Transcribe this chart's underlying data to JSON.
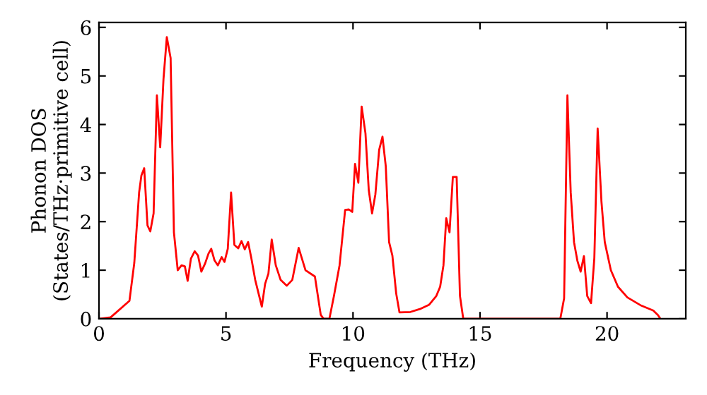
{
  "chart_data": {
    "type": "line",
    "xlabel": "Frequency (THz)",
    "ylabel": "Phonon DOS\n(States/THz·primitive cell)",
    "xlim": [
      0,
      23.1
    ],
    "ylim": [
      0,
      6.1
    ],
    "xticks": [
      0,
      5,
      10,
      15,
      20
    ],
    "yticks": [
      0,
      1,
      2,
      3,
      4,
      5,
      6
    ],
    "series": [
      {
        "color": "#ff0000",
        "x": [
          0.05,
          0.46,
          1.2,
          1.39,
          1.58,
          1.67,
          1.78,
          1.91,
          2.02,
          2.15,
          2.28,
          2.41,
          2.54,
          2.67,
          2.82,
          2.95,
          3.1,
          3.25,
          3.38,
          3.49,
          3.62,
          3.77,
          3.9,
          4.03,
          4.18,
          4.31,
          4.42,
          4.55,
          4.68,
          4.83,
          4.94,
          5.07,
          5.2,
          5.33,
          5.48,
          5.61,
          5.74,
          5.87,
          6.0,
          6.15,
          6.41,
          6.54,
          6.67,
          6.8,
          6.96,
          7.15,
          7.39,
          7.61,
          7.86,
          8.13,
          8.5,
          8.73,
          8.84,
          9.07,
          9.25,
          9.47,
          9.69,
          9.84,
          9.97,
          10.08,
          10.21,
          10.34,
          10.49,
          10.62,
          10.75,
          10.88,
          11.03,
          11.16,
          11.29,
          11.42,
          11.55,
          11.7,
          11.83,
          12.26,
          12.63,
          13.0,
          13.28,
          13.43,
          13.56,
          13.67,
          13.8,
          13.93,
          14.08,
          14.21,
          14.34,
          18.16,
          18.31,
          18.44,
          18.57,
          18.7,
          18.83,
          18.96,
          19.09,
          19.22,
          19.37,
          19.5,
          19.63,
          19.78,
          19.91,
          20.15,
          20.43,
          20.8,
          21.35,
          21.82,
          22.0,
          22.1
        ],
        "values": [
          0,
          0.03,
          0.37,
          1.15,
          2.6,
          2.95,
          3.1,
          1.92,
          1.8,
          2.17,
          4.6,
          3.53,
          4.94,
          5.8,
          5.37,
          1.78,
          1.0,
          1.1,
          1.08,
          0.78,
          1.24,
          1.39,
          1.3,
          0.97,
          1.14,
          1.34,
          1.44,
          1.2,
          1.1,
          1.27,
          1.17,
          1.44,
          2.6,
          1.52,
          1.45,
          1.6,
          1.43,
          1.58,
          1.24,
          0.8,
          0.25,
          0.72,
          0.93,
          1.63,
          1.1,
          0.8,
          0.68,
          0.8,
          1.46,
          1.0,
          0.87,
          0.08,
          0,
          0,
          0.47,
          1.1,
          2.24,
          2.25,
          2.2,
          3.19,
          2.8,
          4.37,
          3.82,
          2.65,
          2.17,
          2.56,
          3.48,
          3.75,
          3.14,
          1.58,
          1.3,
          0.52,
          0.13,
          0.14,
          0.2,
          0.29,
          0.47,
          0.66,
          1.1,
          2.07,
          1.78,
          2.92,
          2.92,
          0.47,
          0,
          0,
          0.42,
          4.6,
          2.6,
          1.58,
          1.2,
          0.97,
          1.29,
          0.47,
          0.32,
          1.25,
          3.92,
          2.41,
          1.58,
          1.0,
          0.66,
          0.44,
          0.27,
          0.17,
          0.08,
          0
        ]
      }
    ]
  }
}
